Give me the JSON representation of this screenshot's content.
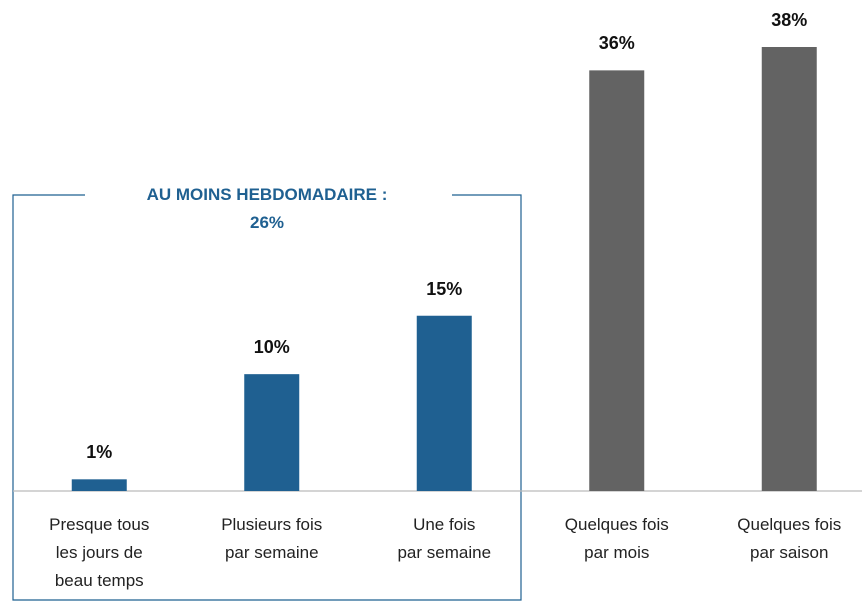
{
  "chart_data": {
    "type": "bar",
    "categories": [
      "Presque tous\nles jours de\nbeau temps",
      "Plusieurs fois\npar semaine",
      "Une fois\npar semaine",
      "Quelques fois\npar mois",
      "Quelques fois\npar saison"
    ],
    "values": [
      1,
      10,
      15,
      36,
      38
    ],
    "value_labels": [
      "1%",
      "10%",
      "15%",
      "36%",
      "38%"
    ],
    "colors": [
      "#1f6091",
      "#1f6091",
      "#1f6091",
      "#636363",
      "#636363"
    ],
    "annotation": [
      "AU MOINS HEBDOMADAIRE :",
      "26%"
    ]
  }
}
